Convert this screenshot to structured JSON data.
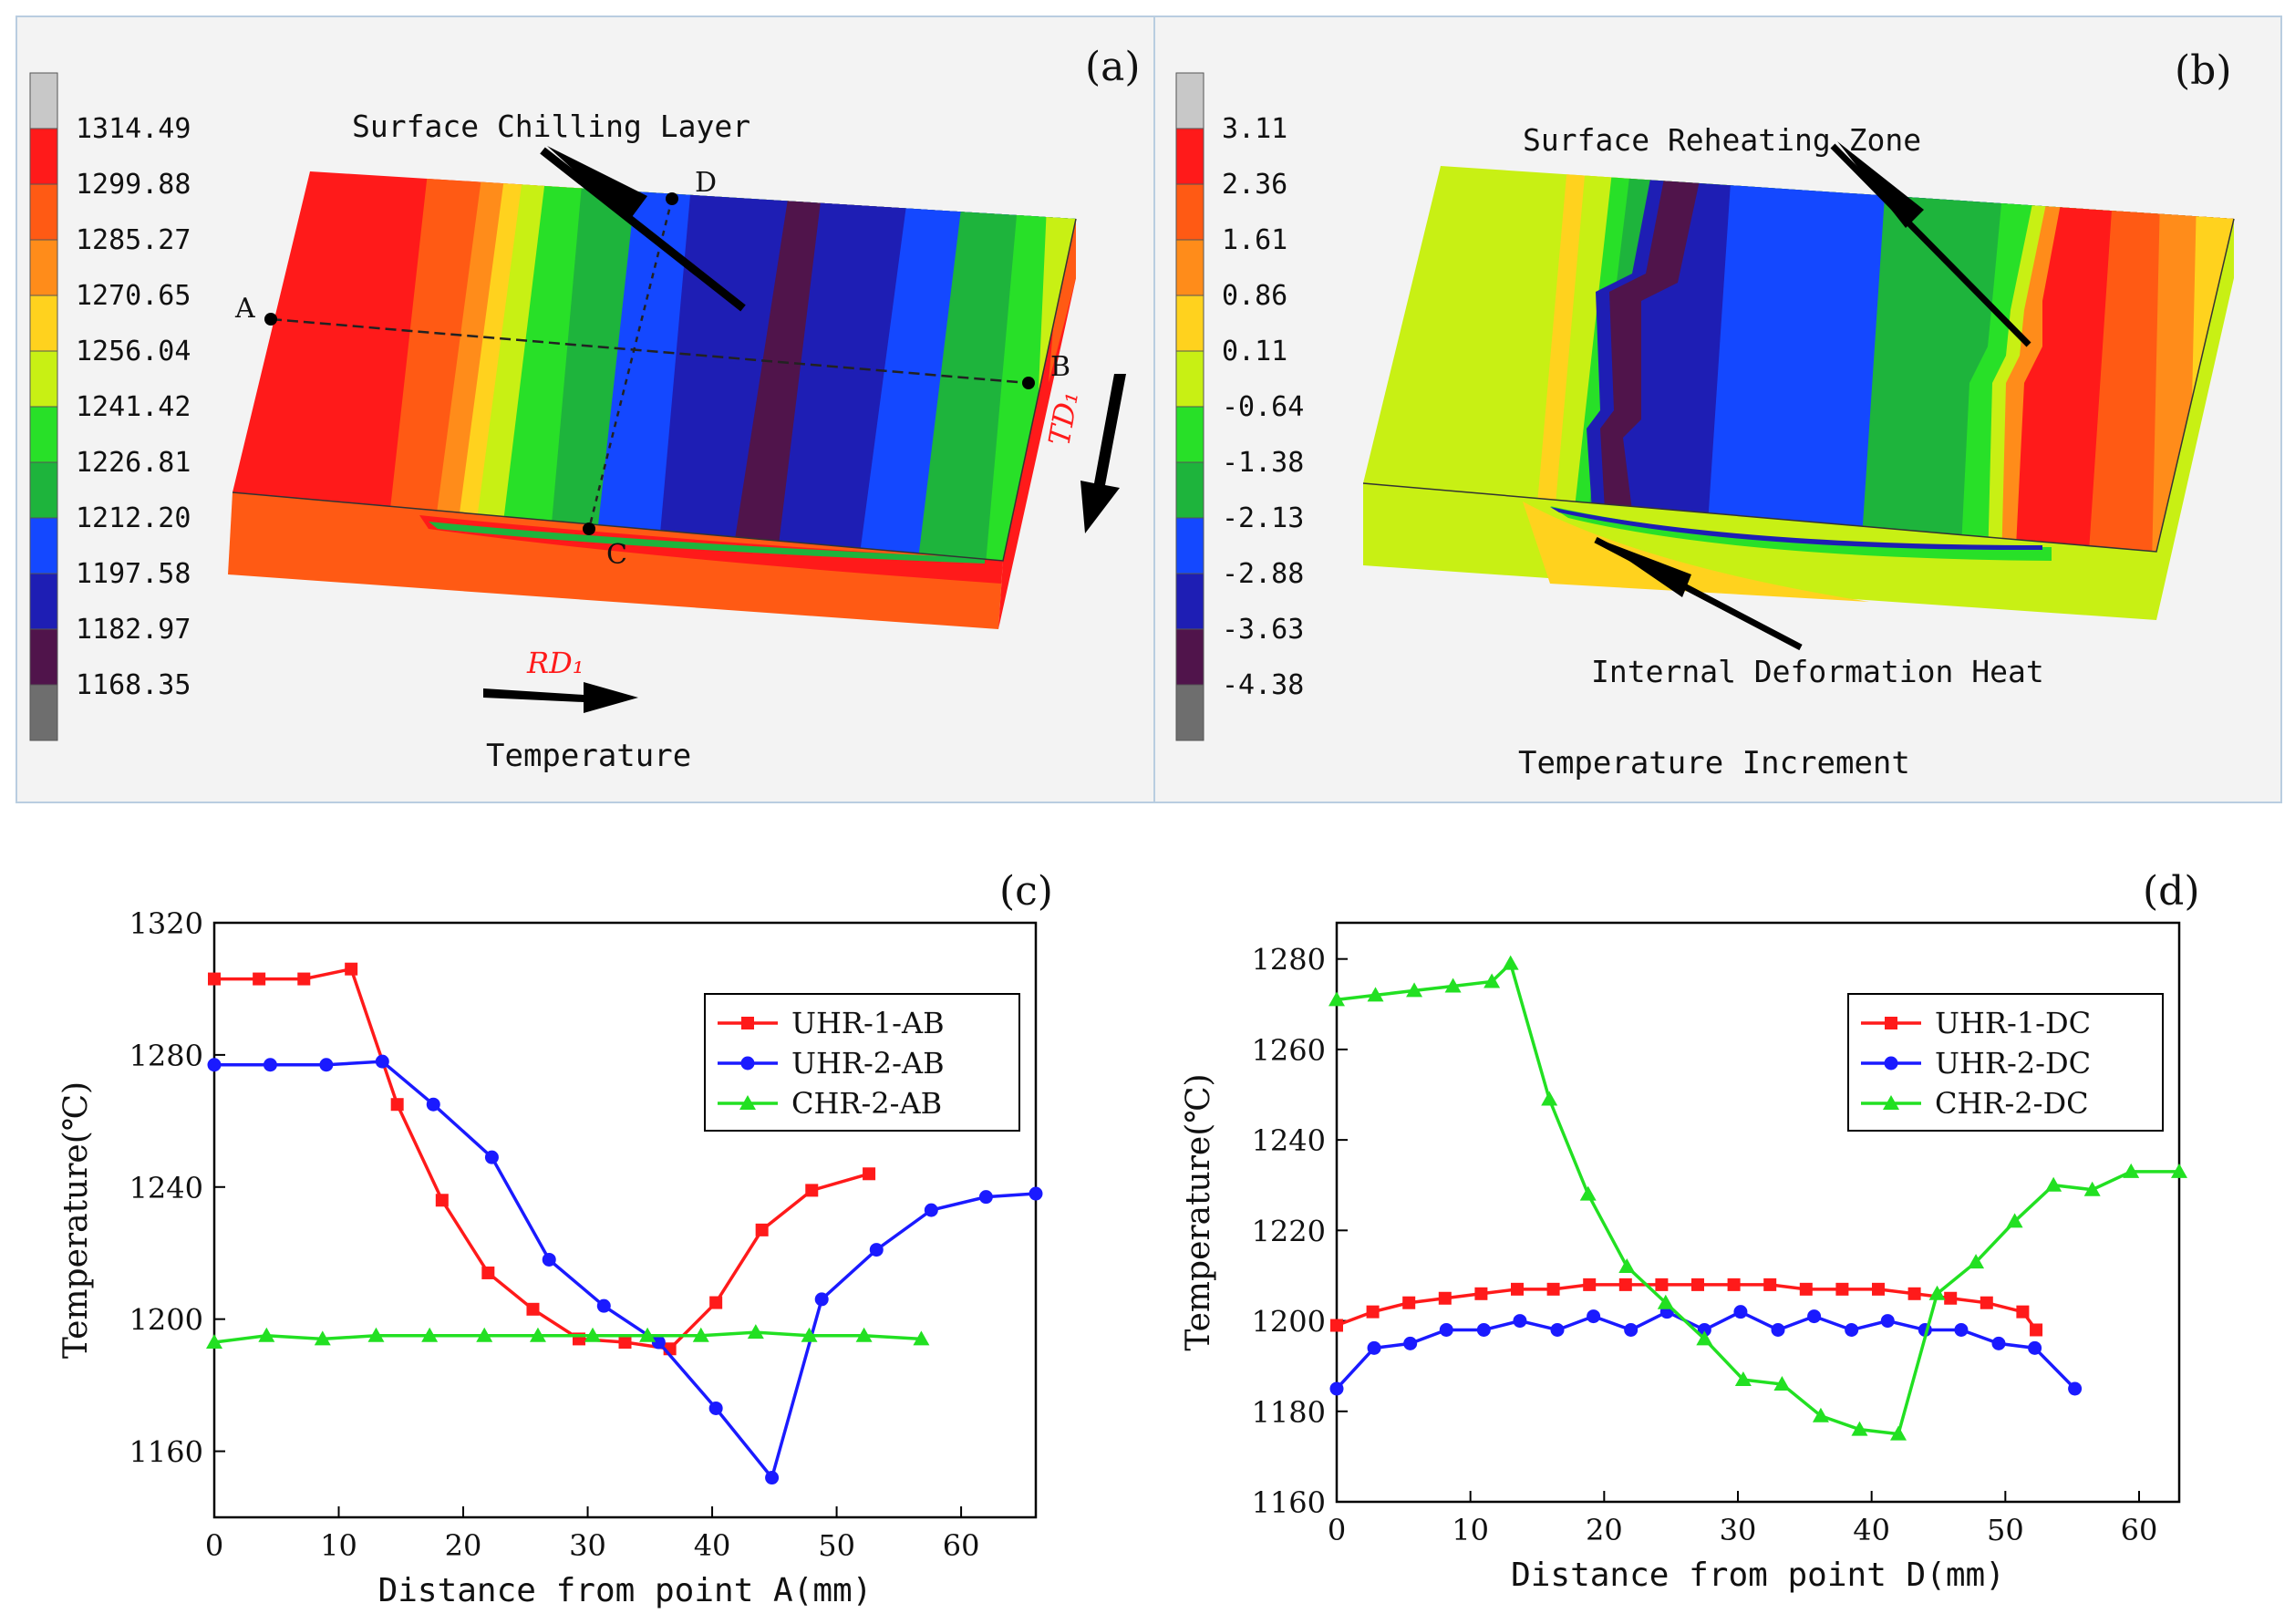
{
  "panels": {
    "a": {
      "letter": "(a)",
      "caption": "Temperature",
      "annotation": "Surface Chilling Layer",
      "points": {
        "A": "A",
        "B": "B",
        "C": "C",
        "D": "D"
      },
      "rd_label": "RD₁",
      "td_label": "TD₁",
      "legend_values": [
        "1314.49",
        "1299.88",
        "1285.27",
        "1270.65",
        "1256.04",
        "1241.42",
        "1226.81",
        "1212.20",
        "1197.58",
        "1182.97",
        "1168.35"
      ]
    },
    "b": {
      "letter": "(b)",
      "caption": "Temperature Increment",
      "annotation_top": "Surface Reheating Zone",
      "annotation_bottom": "Internal Deformation Heat",
      "legend_values": [
        "3.11",
        "2.36",
        "1.61",
        "0.86",
        "0.11",
        "-0.64",
        "-1.38",
        "-2.13",
        "-2.88",
        "-3.63",
        "-4.38"
      ]
    }
  },
  "colors": {
    "scale": [
      "#c8c8c8",
      "#ff1a1a",
      "#ff5a14",
      "#ff8c1a",
      "#ffd21e",
      "#c8f014",
      "#28e028",
      "#1eb43c",
      "#1448ff",
      "#1e1eb4",
      "#50144b",
      "#6e6e6e"
    ],
    "uhr1": "#ff1a1a",
    "uhr2": "#1a1aff",
    "chr2": "#22e022"
  },
  "chart_data": [
    {
      "type": "line",
      "panel": "(c)",
      "xlabel": "Distance from point A(mm)",
      "ylabel": "Temperature(℃)",
      "xlim": [
        0,
        66
      ],
      "ylim": [
        1140,
        1320
      ],
      "xticks": [
        0,
        10,
        20,
        30,
        40,
        50,
        60
      ],
      "yticks": [
        1160,
        1200,
        1240,
        1280,
        1320
      ],
      "legend_position": "top-right",
      "series": [
        {
          "name": "UHR-1-AB",
          "marker": "square",
          "color": "#ff1a1a",
          "x": [
            0,
            3.6,
            7.2,
            11,
            14.7,
            18.3,
            22,
            25.6,
            29.3,
            33,
            36.6,
            40.3,
            44,
            48,
            52.6
          ],
          "y": [
            1303,
            1303,
            1303,
            1306,
            1265,
            1236,
            1214,
            1203,
            1194,
            1193,
            1191,
            1205,
            1227,
            1239,
            1244
          ]
        },
        {
          "name": "UHR-2-AB",
          "marker": "circle",
          "color": "#1a1aff",
          "x": [
            0,
            4.5,
            9,
            13.5,
            17.6,
            22.3,
            26.9,
            31.3,
            35.7,
            40.3,
            44.8,
            48.8,
            53.2,
            57.6,
            62,
            66
          ],
          "y": [
            1277,
            1277,
            1277,
            1278,
            1265,
            1249,
            1218,
            1204,
            1193,
            1173,
            1152,
            1206,
            1221,
            1233,
            1237,
            1238
          ]
        },
        {
          "name": "CHR-2-AB",
          "marker": "triangle",
          "color": "#22e022",
          "x": [
            0,
            4.2,
            8.7,
            13,
            17.3,
            21.7,
            26,
            30.4,
            34.8,
            39.1,
            43.5,
            47.8,
            52.2,
            56.8
          ],
          "y": [
            1193,
            1195,
            1194,
            1195,
            1195,
            1195,
            1195,
            1195,
            1195,
            1195,
            1196,
            1195,
            1195,
            1194
          ]
        }
      ]
    },
    {
      "type": "line",
      "panel": "(d)",
      "xlabel": "Distance from point D(mm)",
      "ylabel": "Temperature(℃)",
      "xlim": [
        0,
        63
      ],
      "ylim": [
        1160,
        1288
      ],
      "xticks": [
        0,
        10,
        20,
        30,
        40,
        50,
        60
      ],
      "yticks": [
        1160,
        1180,
        1200,
        1220,
        1240,
        1260,
        1280
      ],
      "legend_position": "top-right",
      "series": [
        {
          "name": "UHR-1-DC",
          "marker": "square",
          "color": "#ff1a1a",
          "x": [
            0,
            2.7,
            5.4,
            8.1,
            10.8,
            13.5,
            16.2,
            18.9,
            21.6,
            24.3,
            27,
            29.7,
            32.4,
            35.1,
            37.8,
            40.5,
            43.2,
            45.9,
            48.6,
            51.3,
            52.3
          ],
          "y": [
            1199,
            1202,
            1204,
            1205,
            1206,
            1207,
            1207,
            1208,
            1208,
            1208,
            1208,
            1208,
            1208,
            1207,
            1207,
            1207,
            1206,
            1205,
            1204,
            1202,
            1198
          ]
        },
        {
          "name": "UHR-2-DC",
          "marker": "circle",
          "color": "#1a1aff",
          "x": [
            0,
            2.8,
            5.5,
            8.2,
            11,
            13.7,
            16.5,
            19.2,
            22,
            24.7,
            27.5,
            30.2,
            33,
            35.7,
            38.5,
            41.2,
            44,
            46.7,
            49.5,
            52.2,
            55.2
          ],
          "y": [
            1185,
            1194,
            1195,
            1198,
            1198,
            1200,
            1198,
            1201,
            1198,
            1202,
            1198,
            1202,
            1198,
            1201,
            1198,
            1200,
            1198,
            1198,
            1195,
            1194,
            1185
          ]
        },
        {
          "name": "CHR-2-DC",
          "marker": "triangle",
          "color": "#22e022",
          "x": [
            0,
            2.9,
            5.8,
            8.7,
            11.6,
            13,
            15.9,
            18.8,
            21.7,
            24.6,
            27.5,
            30.4,
            33.3,
            36.2,
            39.1,
            42,
            44.9,
            47.8,
            50.7,
            53.6,
            56.5,
            59.4,
            63
          ],
          "y": [
            1271,
            1272,
            1273,
            1274,
            1275,
            1279,
            1249,
            1228,
            1212,
            1204,
            1196,
            1187,
            1186,
            1179,
            1176,
            1175,
            1206,
            1213,
            1222,
            1230,
            1229,
            1233,
            1233
          ]
        }
      ]
    }
  ]
}
